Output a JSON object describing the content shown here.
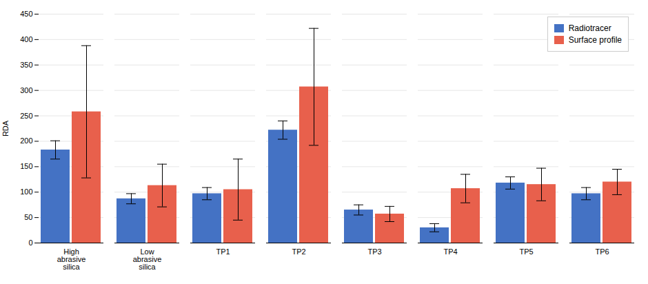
{
  "chart_data": {
    "type": "bar",
    "categories": [
      "High\nabrasive\nsilica",
      "Low\nabrasive\nsilica",
      "TP1",
      "TP2",
      "TP3",
      "TP4",
      "TP5",
      "TP6"
    ],
    "series": [
      {
        "name": "Radiotracer",
        "color": "#4472C4",
        "values": [
          183,
          87,
          97,
          222,
          65,
          30,
          118,
          97
        ],
        "errors": [
          18,
          10,
          12,
          18,
          10,
          8,
          12,
          12
        ]
      },
      {
        "name": "Surface profile",
        "color": "#E8604C",
        "values": [
          258,
          113,
          105,
          307,
          57,
          107,
          115,
          120
        ],
        "errors": [
          130,
          42,
          60,
          115,
          15,
          28,
          32,
          25
        ]
      }
    ],
    "ylabel": "RDA",
    "ylim": [
      0,
      450
    ],
    "yticks": [
      0,
      50,
      100,
      150,
      200,
      250,
      300,
      350,
      400,
      450
    ],
    "grid": true,
    "legend": "upper right"
  }
}
